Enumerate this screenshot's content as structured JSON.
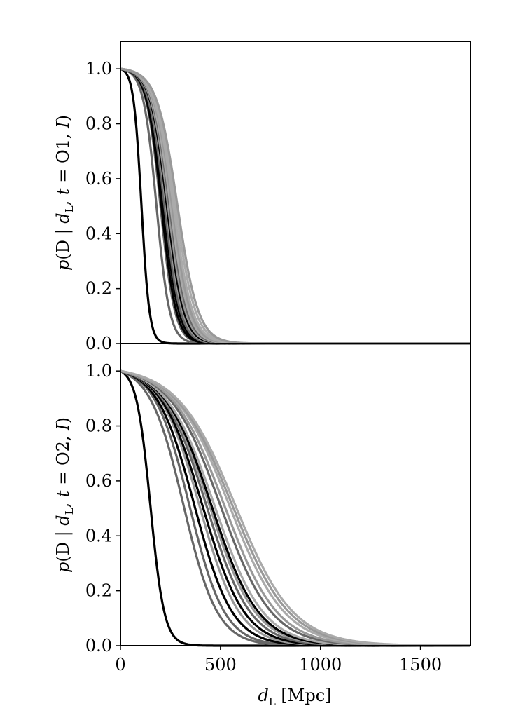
{
  "chart_data": [
    {
      "type": "line",
      "panel": "top",
      "ylabel": {
        "p": "p",
        "open": "(D | ",
        "d": "d",
        "sub": "L",
        "mid": ", ",
        "t": "t",
        "eq": " = O1, ",
        "I": "I",
        "close": ")"
      },
      "xlim": [
        0,
        1750
      ],
      "ylim": [
        0,
        1.1
      ],
      "yticks": [
        "0.0",
        "0.2",
        "0.4",
        "0.6",
        "0.8",
        "1.0"
      ],
      "grid": false,
      "line_colors": [
        "#000000",
        "#666666",
        "#999999",
        "#aaaaaa"
      ],
      "series": [
        {
          "color": "#000000",
          "d_half": 105,
          "width": 20
        },
        {
          "color": "#666666",
          "d_half": 180,
          "width": 33
        },
        {
          "color": "#666666",
          "d_half": 200,
          "width": 36
        },
        {
          "color": "#000000",
          "d_half": 205,
          "width": 37
        },
        {
          "color": "#000000",
          "d_half": 215,
          "width": 38
        },
        {
          "color": "#666666",
          "d_half": 220,
          "width": 40
        },
        {
          "color": "#999999",
          "d_half": 228,
          "width": 41
        },
        {
          "color": "#000000",
          "d_half": 232,
          "width": 42
        },
        {
          "color": "#999999",
          "d_half": 238,
          "width": 43
        },
        {
          "color": "#666666",
          "d_half": 245,
          "width": 44
        },
        {
          "color": "#aaaaaa",
          "d_half": 250,
          "width": 45
        },
        {
          "color": "#999999",
          "d_half": 258,
          "width": 46
        },
        {
          "color": "#aaaaaa",
          "d_half": 265,
          "width": 48
        },
        {
          "color": "#aaaaaa",
          "d_half": 275,
          "width": 50
        },
        {
          "color": "#999999",
          "d_half": 285,
          "width": 52
        }
      ]
    },
    {
      "type": "line",
      "panel": "bottom",
      "ylabel": {
        "p": "p",
        "open": "(D | ",
        "d": "d",
        "sub": "L",
        "mid": ", ",
        "t": "t",
        "eq": " = O2, ",
        "I": "I",
        "close": ")"
      },
      "xlabel": {
        "d": "d",
        "sub": "L",
        "unit": " [Mpc]"
      },
      "xlim": [
        0,
        1750
      ],
      "ylim": [
        0,
        1.1
      ],
      "xticks": [
        "0",
        "500",
        "1000",
        "1500"
      ],
      "xtick_values": [
        0,
        500,
        1000,
        1500
      ],
      "yticks": [
        "0.0",
        "0.2",
        "0.4",
        "0.6",
        "0.8",
        "1.0"
      ],
      "grid": false,
      "series": [
        {
          "color": "#000000",
          "d_half": 150,
          "width": 35
        },
        {
          "color": "#666666",
          "d_half": 315,
          "width": 85
        },
        {
          "color": "#666666",
          "d_half": 345,
          "width": 88
        },
        {
          "color": "#000000",
          "d_half": 370,
          "width": 95
        },
        {
          "color": "#999999",
          "d_half": 395,
          "width": 100
        },
        {
          "color": "#000000",
          "d_half": 410,
          "width": 105
        },
        {
          "color": "#666666",
          "d_half": 430,
          "width": 110
        },
        {
          "color": "#999999",
          "d_half": 445,
          "width": 115
        },
        {
          "color": "#000000",
          "d_half": 455,
          "width": 118
        },
        {
          "color": "#aaaaaa",
          "d_half": 470,
          "width": 122
        },
        {
          "color": "#666666",
          "d_half": 500,
          "width": 128
        },
        {
          "color": "#999999",
          "d_half": 520,
          "width": 132
        },
        {
          "color": "#aaaaaa",
          "d_half": 545,
          "width": 138
        },
        {
          "color": "#999999",
          "d_half": 560,
          "width": 142
        },
        {
          "color": "#aaaaaa",
          "d_half": 575,
          "width": 145
        }
      ]
    }
  ]
}
